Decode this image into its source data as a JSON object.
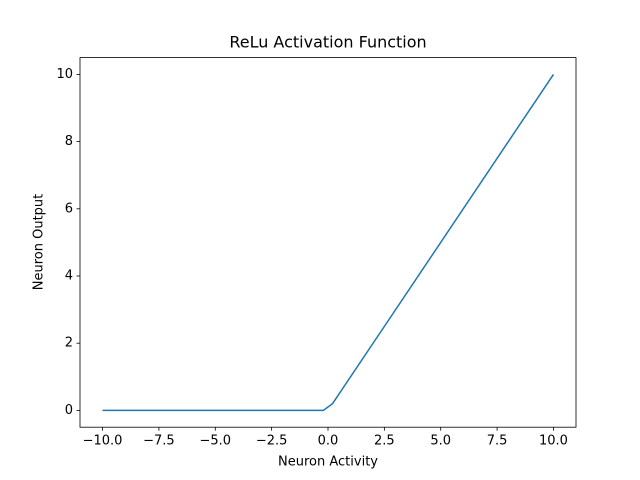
{
  "chart_data": {
    "type": "line",
    "title": "ReLu Activation Function",
    "x_label": "Neuron Activity",
    "y_label": "Neuron Output",
    "x": [
      -10,
      -0.204,
      0.204,
      10
    ],
    "series": [
      {
        "color": "#1f77b4",
        "values": [
          0,
          0,
          0.204,
          10
        ]
      }
    ],
    "xlim": [
      -11,
      11
    ],
    "ylim": [
      -0.5,
      10.5
    ],
    "xticks": [
      {
        "value": -10,
        "label": "−10.0"
      },
      {
        "value": -7.5,
        "label": "−7.5"
      },
      {
        "value": -5,
        "label": "−5.0"
      },
      {
        "value": -2.5,
        "label": "−2.5"
      },
      {
        "value": 0,
        "label": "0.0"
      },
      {
        "value": 2.5,
        "label": "2.5"
      },
      {
        "value": 5,
        "label": "5.0"
      },
      {
        "value": 7.5,
        "label": "7.5"
      },
      {
        "value": 10,
        "label": "10.0"
      }
    ],
    "yticks": [
      0,
      2,
      4,
      6,
      8,
      10
    ],
    "grid": false
  }
}
